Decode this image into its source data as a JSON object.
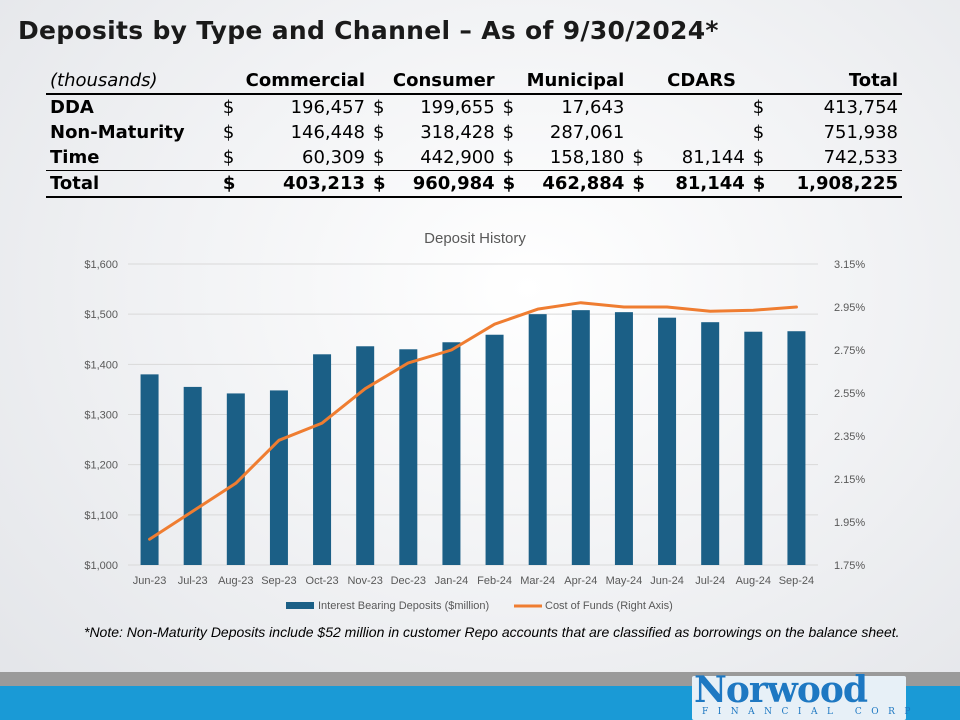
{
  "title": "Deposits by Type and Channel – As of 9/30/2024*",
  "table": {
    "units": "(thousands)",
    "columns": [
      "Commercial",
      "Consumer",
      "Municipal",
      "CDARS",
      "Total"
    ],
    "currency": "$",
    "rows": [
      {
        "label": "DDA",
        "cells": [
          "196,457",
          "199,655",
          "17,643",
          "",
          "413,754"
        ]
      },
      {
        "label": "Non-Maturity",
        "cells": [
          "146,448",
          "318,428",
          "287,061",
          "",
          "751,938"
        ]
      },
      {
        "label": "Time",
        "cells": [
          "60,309",
          "442,900",
          "158,180",
          "81,144",
          "742,533"
        ]
      },
      {
        "label": "Total",
        "cells": [
          "403,213",
          "960,984",
          "462,884",
          "81,144",
          "1,908,225"
        ]
      }
    ]
  },
  "chart_data": {
    "type": "bar",
    "title": "Deposit History",
    "categories": [
      "Jun-23",
      "Jul-23",
      "Aug-23",
      "Sep-23",
      "Oct-23",
      "Nov-23",
      "Dec-23",
      "Jan-24",
      "Feb-24",
      "Mar-24",
      "Apr-24",
      "May-24",
      "Jun-24",
      "Jul-24",
      "Aug-24",
      "Sep-24"
    ],
    "series": [
      {
        "name": "Interest Bearing Deposits ($million)",
        "type": "bar",
        "axis": "left",
        "color": "#1b5f86",
        "values": [
          1380,
          1355,
          1342,
          1348,
          1420,
          1436,
          1430,
          1444,
          1459,
          1500,
          1508,
          1504,
          1493,
          1484,
          1465,
          1466
        ]
      },
      {
        "name": "Cost of Funds (Right Axis)",
        "type": "line",
        "axis": "right",
        "color": "#ef7d31",
        "values": [
          1.87,
          2.0,
          2.13,
          2.33,
          2.41,
          2.57,
          2.69,
          2.75,
          2.87,
          2.94,
          2.97,
          2.95,
          2.95,
          2.93,
          2.935,
          2.95
        ]
      }
    ],
    "left_axis": {
      "ylim": [
        1000,
        1600
      ],
      "ticks": [
        "$1,000",
        "$1,100",
        "$1,200",
        "$1,300",
        "$1,400",
        "$1,500",
        "$1,600"
      ]
    },
    "right_axis": {
      "ylim": [
        1.75,
        3.15
      ],
      "ticks": [
        "1.75%",
        "1.95%",
        "2.15%",
        "2.35%",
        "2.55%",
        "2.75%",
        "2.95%",
        "3.15%"
      ]
    },
    "legend": "bottom"
  },
  "note": "*Note: Non-Maturity Deposits include $52 million in customer Repo accounts that are classified as borrowings on the balance sheet.",
  "logo": {
    "main": "Norwood",
    "sub": "FINANCIAL CORP"
  }
}
